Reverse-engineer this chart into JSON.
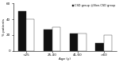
{
  "categories": [
    "<25",
    "25-40",
    "41-60",
    ">60"
  ],
  "csd_values": [
    50,
    27,
    22,
    10
  ],
  "non_csd_values": [
    40,
    30,
    22,
    20
  ],
  "csd_color": "#111111",
  "non_csd_color": "#ffffff",
  "bar_edge_color": "#333333",
  "ylabel": "% patients",
  "xlabel": "Age (y)",
  "ylim": [
    0,
    60
  ],
  "yticks": [
    0,
    20,
    40,
    60
  ],
  "legend_labels": [
    "CSD group",
    "Non-CSD group"
  ],
  "bar_width": 0.32,
  "title": ""
}
